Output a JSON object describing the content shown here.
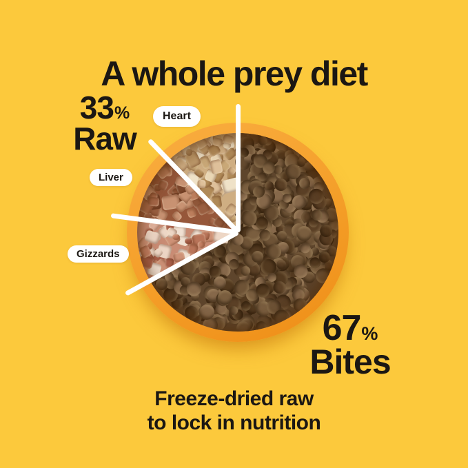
{
  "page": {
    "background_color": "#FCC93C",
    "text_color": "#1B1713"
  },
  "title": "A whole prey diet",
  "stats": {
    "raw": {
      "value": "33",
      "percent_symbol": "%",
      "label": "Raw"
    },
    "bites": {
      "value": "67",
      "percent_symbol": "%",
      "label": "Bites"
    }
  },
  "slice_labels": {
    "heart": "Heart",
    "liver": "Liver",
    "gizzards": "Gizzards"
  },
  "footer": {
    "line1": "Freeze-dried raw",
    "line2": "to lock in nutrition"
  },
  "chart_data": {
    "type": "pie",
    "title": "A whole prey diet",
    "units": "percent",
    "slices": [
      {
        "label": "Bites (kibble)",
        "value": 67,
        "color": "#5E452C"
      },
      {
        "label": "Raw - Gizzards",
        "value": 11,
        "color": "#C98C74"
      },
      {
        "label": "Raw - Liver",
        "value": 11,
        "color": "#96573A"
      },
      {
        "label": "Raw - Heart",
        "value": 11,
        "color": "#CFAE82"
      }
    ],
    "groups": [
      {
        "label": "Raw",
        "value": 33
      },
      {
        "label": "Bites",
        "value": 67
      }
    ],
    "annotations": [
      "33% Raw",
      "67% Bites",
      "Heart",
      "Liver",
      "Gizzards",
      "Freeze-dried raw to lock in nutrition"
    ],
    "start_angle": "12 o'clock",
    "direction": "Bites fills clockwise from 12 o'clock; raw sub-slices counter-clockwise from 12 o'clock: Heart, Liver, Gizzards",
    "legend_position": "none",
    "grid": false
  },
  "bowl": {
    "rim_gradient": [
      "#F9AC3E",
      "#F49E28",
      "#EF8F18"
    ],
    "divider_color": "#FFFFFF",
    "divider_rotations_deg": [
      0,
      -44,
      -82.5,
      -118.8
    ],
    "slices": [
      {
        "name": "bites",
        "shape": "round",
        "from": 0,
        "to": 241.2,
        "base": "#5E452C",
        "palette": [
          "#6E5336",
          "#5B4026",
          "#7A5E3F",
          "#52391F",
          "#86684A",
          "#644A2F"
        ]
      },
      {
        "name": "gizzards",
        "shape": "cube",
        "from": 241.2,
        "to": 277.5,
        "base": "#C98C74",
        "palette": [
          "#E2B39E",
          "#CE9277",
          "#B9755A",
          "#EDD6C5",
          "#C58064",
          "#A85F49",
          "#F0E0D2"
        ]
      },
      {
        "name": "liver",
        "shape": "cube",
        "from": 277.5,
        "to": 316,
        "base": "#96573A",
        "palette": [
          "#A96A4B",
          "#8F5638",
          "#BC7E5C",
          "#7C472C",
          "#C89272",
          "#9A5F41"
        ]
      },
      {
        "name": "heart",
        "shape": "cube",
        "from": 316,
        "to": 360,
        "base": "#CFAE82",
        "palette": [
          "#DEC09A",
          "#C9A877",
          "#E9D6B4",
          "#BE9A6B",
          "#D2B186",
          "#B08A58",
          "#EFE2C8"
        ]
      }
    ]
  }
}
